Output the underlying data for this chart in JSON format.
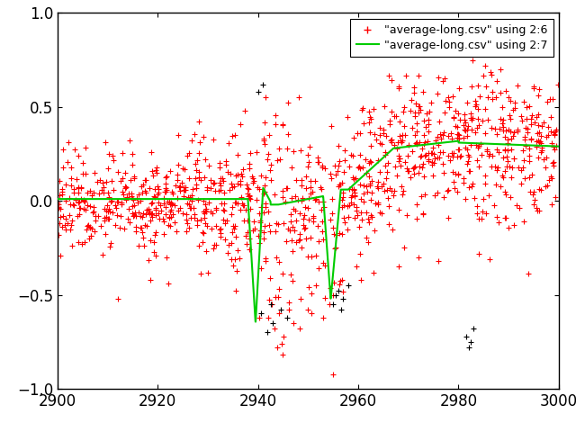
{
  "xlim": [
    2900,
    3000
  ],
  "ylim": [
    -1,
    1
  ],
  "xticks": [
    2900,
    2920,
    2940,
    2960,
    2980,
    3000
  ],
  "yticks": [
    -1,
    -0.5,
    0,
    0.5,
    1
  ],
  "legend1_label": "\"average-long.csv\" using 2:6",
  "legend2_label": "\"average-long.csv\" using 2:7",
  "scatter_color": "#ff0000",
  "black_color": "#000000",
  "line_color": "#00cc00",
  "bg_color": "#ffffff",
  "seed": 12345
}
